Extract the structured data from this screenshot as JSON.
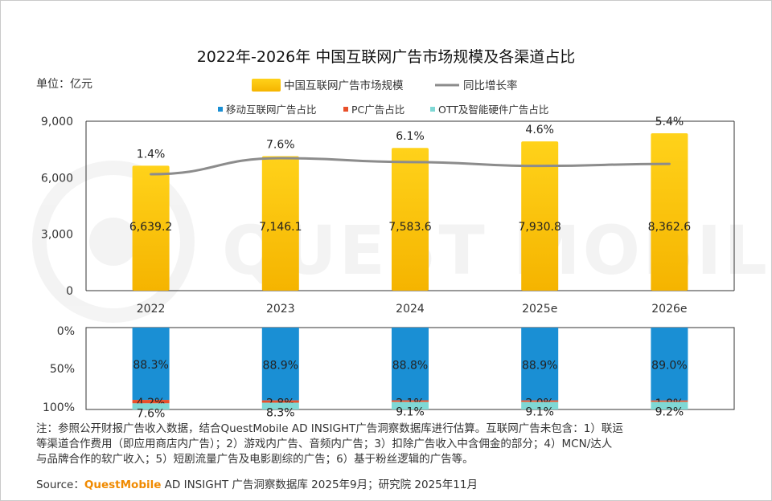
{
  "title": "2022年-2026年 中国互联网广告市场规模及各渠道占比",
  "unit_label": "单位：亿元",
  "legend": {
    "bar": "中国互联网广告市场规模",
    "line": "同比增长率",
    "mobile": "移动互联网广告占比",
    "pc": "PC广告占比",
    "ott": "OTT及智能硬件广告占比"
  },
  "colors": {
    "bar_top": "#ffd21a",
    "bar_bottom": "#f5b400",
    "line": "#8c8c8c",
    "mobile": "#1a8fd4",
    "pc": "#e8502a",
    "ott": "#7fd8d5",
    "brand": "#f08a00"
  },
  "chart_data": [
    {
      "type": "bar",
      "categories": [
        "2022",
        "2023",
        "2024",
        "2025e",
        "2026e"
      ],
      "series": [
        {
          "name": "中国互联网广告市场规模",
          "type": "bar",
          "values": [
            6639.2,
            7146.1,
            7583.6,
            7930.8,
            8362.6
          ],
          "labels": [
            "6,639.2",
            "7,146.1",
            "7,583.6",
            "7,930.8",
            "8,362.6"
          ]
        },
        {
          "name": "同比增长率",
          "type": "line",
          "values": [
            1.4,
            7.6,
            6.1,
            4.6,
            5.4
          ],
          "labels": [
            "1.4%",
            "7.6%",
            "6.1%",
            "4.6%",
            "5.4%"
          ]
        }
      ],
      "ylim": [
        0,
        9000
      ],
      "yticks": [
        "0",
        "3,000",
        "6,000",
        "9,000"
      ],
      "grid": false,
      "legend_position": "top"
    },
    {
      "type": "bar",
      "stacked": true,
      "categories": [
        "2022",
        "2023",
        "2024",
        "2025e",
        "2026e"
      ],
      "series": [
        {
          "name": "移动互联网广告占比",
          "values": [
            88.3,
            88.9,
            88.8,
            88.9,
            89.0
          ],
          "labels": [
            "88.3%",
            "88.9%",
            "88.8%",
            "88.9%",
            "89.0%"
          ]
        },
        {
          "name": "PC广告占比",
          "values": [
            4.2,
            2.8,
            2.1,
            2.0,
            1.8
          ],
          "labels": [
            "4.2%",
            "2.8%",
            "2.1%",
            "2.0%",
            "1.8%"
          ]
        },
        {
          "name": "OTT及智能硬件广告占比",
          "values": [
            7.6,
            8.3,
            9.1,
            9.1,
            9.2
          ],
          "labels": [
            "7.6%",
            "8.3%",
            "9.1%",
            "9.1%",
            "9.2%"
          ]
        }
      ],
      "ylim": [
        0,
        100
      ],
      "yticks": [
        "0%",
        "50%",
        "100%"
      ],
      "inverted_axis": true
    }
  ],
  "note_lines": [
    "注：参照公开财报广告收入数据，结合QuestMobile AD INSIGHT广告洞察数据库进行估算。互联网广告未包含：1）联运",
    "等渠道合作费用（即应用商店内广告）；2）游戏内广告、音频内广告；3）扣除广告收入中含佣金的部分；4）MCN/达人",
    "与品牌合作的软广收入；5）短剧流量广告及电影剧综的广告；6）基于粉丝逻辑的广告等。"
  ],
  "source": {
    "prefix": "Source：",
    "brand": "QuestMobile",
    "rest": " AD INSIGHT 广告洞察数据库 2025年9月；研究院 2025年11月"
  },
  "watermark": {
    "text": "QUEST MOBILE"
  }
}
